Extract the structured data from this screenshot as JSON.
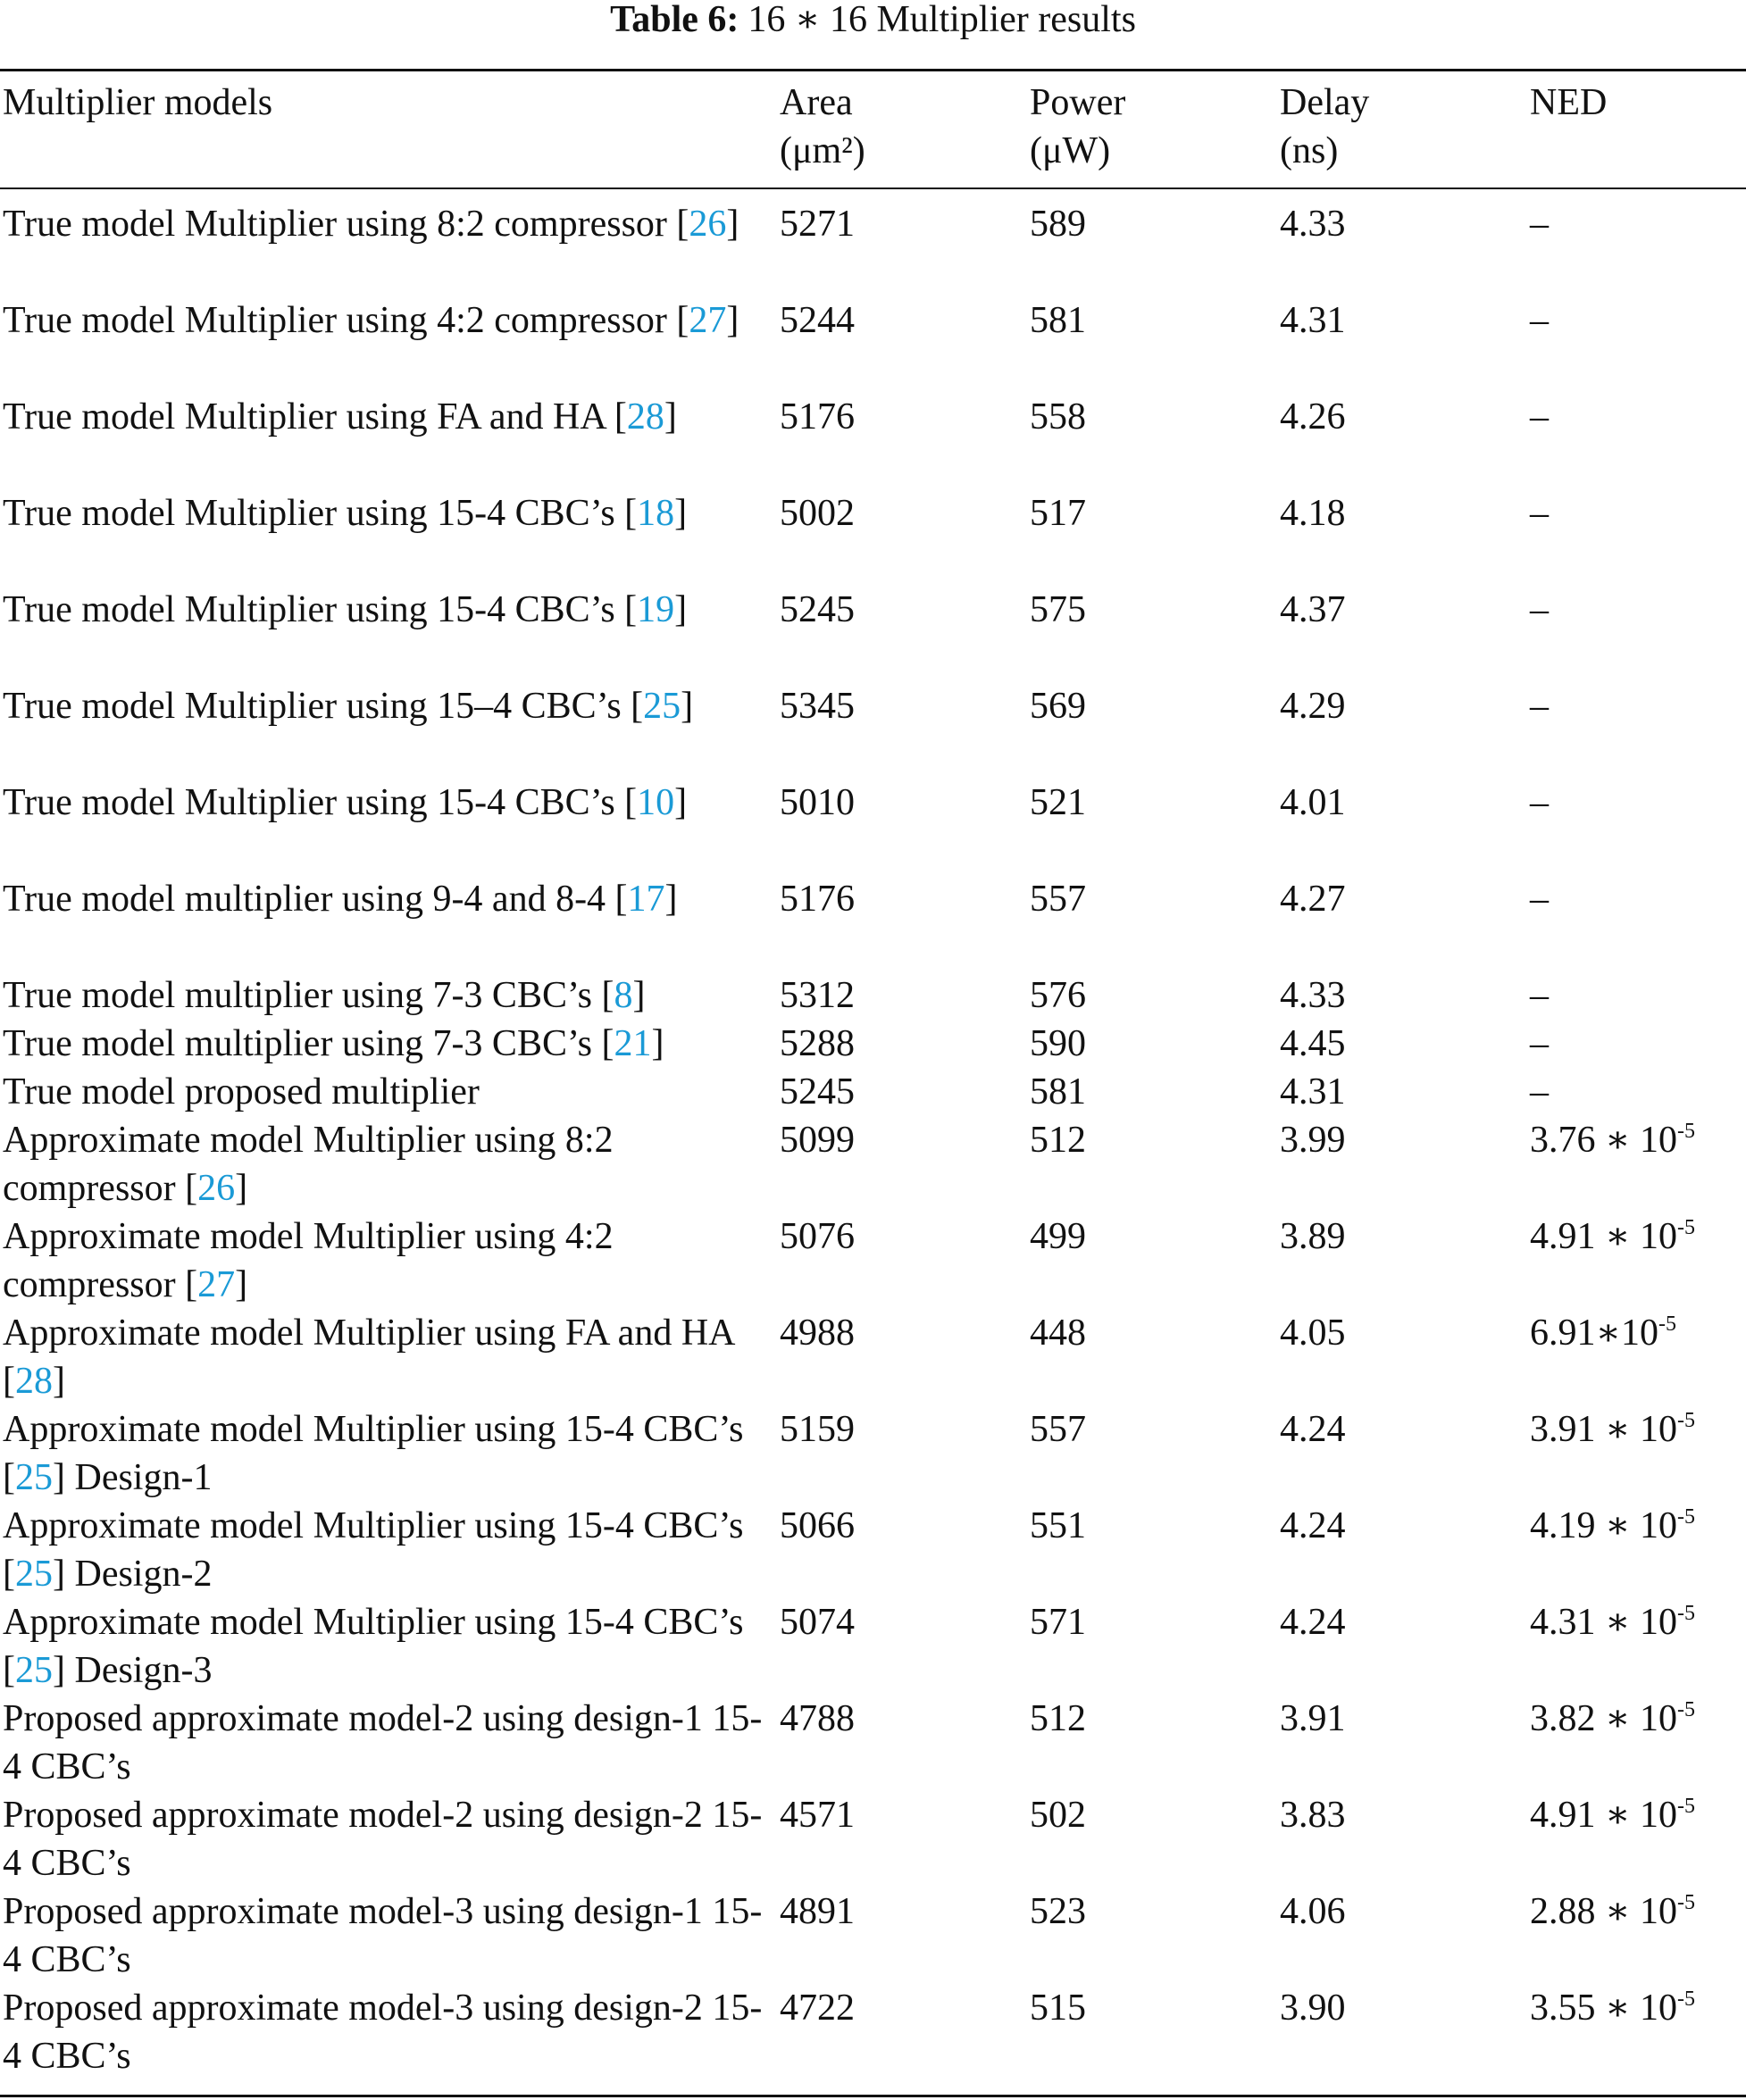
{
  "caption": {
    "label": "Table 6:",
    "text": "16 ∗ 16 Multiplier results"
  },
  "header": {
    "col1": "Multiplier models",
    "col2_line1": "Area",
    "col2_line2": "(μm²)",
    "col3_line1": "Power",
    "col3_line2": "(μW)",
    "col4_line1": "Delay",
    "col4_line2": "(ns)",
    "col5": "NED"
  },
  "rows": [
    {
      "model_pre": "True model Multiplier using 8:2 compressor [",
      "ref": "26",
      "model_post": "]",
      "area": "5271",
      "power": "589",
      "delay": "4.33",
      "ned": "–",
      "lines": 2
    },
    {
      "model_pre": "True model Multiplier using 4:2 compressor [",
      "ref": "27",
      "model_post": "]",
      "area": "5244",
      "power": "581",
      "delay": "4.31",
      "ned": "–",
      "lines": 2
    },
    {
      "model_pre": "True model Multiplier using FA and HA [",
      "ref": "28",
      "model_post": "]",
      "area": "5176",
      "power": "558",
      "delay": "4.26",
      "ned": "–",
      "lines": 2
    },
    {
      "model_pre": "True model Multiplier using 15-4 CBC’s [",
      "ref": "18",
      "model_post": "]",
      "area": "5002",
      "power": "517",
      "delay": "4.18",
      "ned": "–",
      "lines": 2
    },
    {
      "model_pre": "True model Multiplier using 15-4 CBC’s [",
      "ref": "19",
      "model_post": "]",
      "area": "5245",
      "power": "575",
      "delay": "4.37",
      "ned": "–",
      "lines": 2
    },
    {
      "model_pre": "True model Multiplier using 15–4 CBC’s [",
      "ref": "25",
      "model_post": "]",
      "area": "5345",
      "power": "569",
      "delay": "4.29",
      "ned": "–",
      "lines": 2
    },
    {
      "model_pre": "True model Multiplier using 15-4 CBC’s [",
      "ref": "10",
      "model_post": "]",
      "area": "5010",
      "power": "521",
      "delay": "4.01",
      "ned": "–",
      "lines": 2
    },
    {
      "model_pre": "True model multiplier using 9-4 and 8-4 [",
      "ref": "17",
      "model_post": "]",
      "area": "5176",
      "power": "557",
      "delay": "4.27",
      "ned": "–",
      "lines": 2
    },
    {
      "model_pre": "True model multiplier using 7-3 CBC’s [",
      "ref": "8",
      "model_post": "]",
      "area": "5312",
      "power": "576",
      "delay": "4.33",
      "ned": "–",
      "lines": 1
    },
    {
      "model_pre": "True model multiplier using 7-3 CBC’s [",
      "ref": "21",
      "model_post": "]",
      "area": "5288",
      "power": "590",
      "delay": "4.45",
      "ned": "–",
      "lines": 1
    },
    {
      "model_pre": "True model proposed multiplier",
      "ref": "",
      "model_post": "",
      "area": "5245",
      "power": "581",
      "delay": "4.31",
      "ned": "–",
      "lines": 1
    },
    {
      "model_pre": "Approximate model Multiplier using 8:2 compressor [",
      "ref": "26",
      "model_post": "]",
      "area": "5099",
      "power": "512",
      "delay": "3.99",
      "ned_base": "3.76 ∗ 10",
      "ned_exp": "-5",
      "lines": 2
    },
    {
      "model_pre": "Approximate model Multiplier using 4:2 compressor [",
      "ref": "27",
      "model_post": "]",
      "area": "5076",
      "power": "499",
      "delay": "3.89",
      "ned_base": "4.91 ∗ 10",
      "ned_exp": "-5",
      "lines": 2
    },
    {
      "model_pre": "Approximate model Multiplier using FA and HA [",
      "ref": "28",
      "model_post": "]",
      "area": "4988",
      "power": "448",
      "delay": "4.05",
      "ned_base": "6.91∗10",
      "ned_exp": "-5",
      "lines": 2
    },
    {
      "model_pre": "Approximate model Multiplier using 15-4 CBC’s [",
      "ref": "25",
      "model_post": "] Design-1",
      "area": "5159",
      "power": "557",
      "delay": "4.24",
      "ned_base": "3.91 ∗ 10",
      "ned_exp": "-5",
      "lines": 2
    },
    {
      "model_pre": "Approximate model Multiplier using 15-4 CBC’s [",
      "ref": "25",
      "model_post": "] Design-2",
      "area": "5066",
      "power": "551",
      "delay": "4.24",
      "ned_base": "4.19 ∗ 10",
      "ned_exp": "-5",
      "lines": 2
    },
    {
      "model_pre": "Approximate model Multiplier using 15-4 CBC’s [",
      "ref": "25",
      "model_post": "] Design-3",
      "area": "5074",
      "power": "571",
      "delay": "4.24",
      "ned_base": "4.31 ∗ 10",
      "ned_exp": "-5",
      "lines": 2
    },
    {
      "model_pre": "Proposed approximate model-2 using design-1 15-4 CBC’s",
      "ref": "",
      "model_post": "",
      "area": "4788",
      "power": "512",
      "delay": "3.91",
      "ned_base": "3.82 ∗ 10",
      "ned_exp": "-5",
      "lines": 2
    },
    {
      "model_pre": "Proposed approximate model-2 using design-2 15-4 CBC’s",
      "ref": "",
      "model_post": "",
      "area": "4571",
      "power": "502",
      "delay": "3.83",
      "ned_base": "4.91 ∗ 10",
      "ned_exp": "-5",
      "lines": 2
    },
    {
      "model_pre": "Proposed approximate model-3 using design-1 15-4 CBC’s",
      "ref": "",
      "model_post": "",
      "area": "4891",
      "power": "523",
      "delay": "4.06",
      "ned_base": "2.88 ∗ 10",
      "ned_exp": "-5",
      "lines": 2
    },
    {
      "model_pre": "Proposed approximate model-3 using design-2 15-4 CBC’s",
      "ref": "",
      "model_post": "",
      "area": "4722",
      "power": "515",
      "delay": "3.90",
      "ned_base": "3.55 ∗ 10",
      "ned_exp": "-5",
      "lines": 2
    }
  ],
  "colors": {
    "text": "#111111",
    "reference_link": "#1a9ad6"
  }
}
